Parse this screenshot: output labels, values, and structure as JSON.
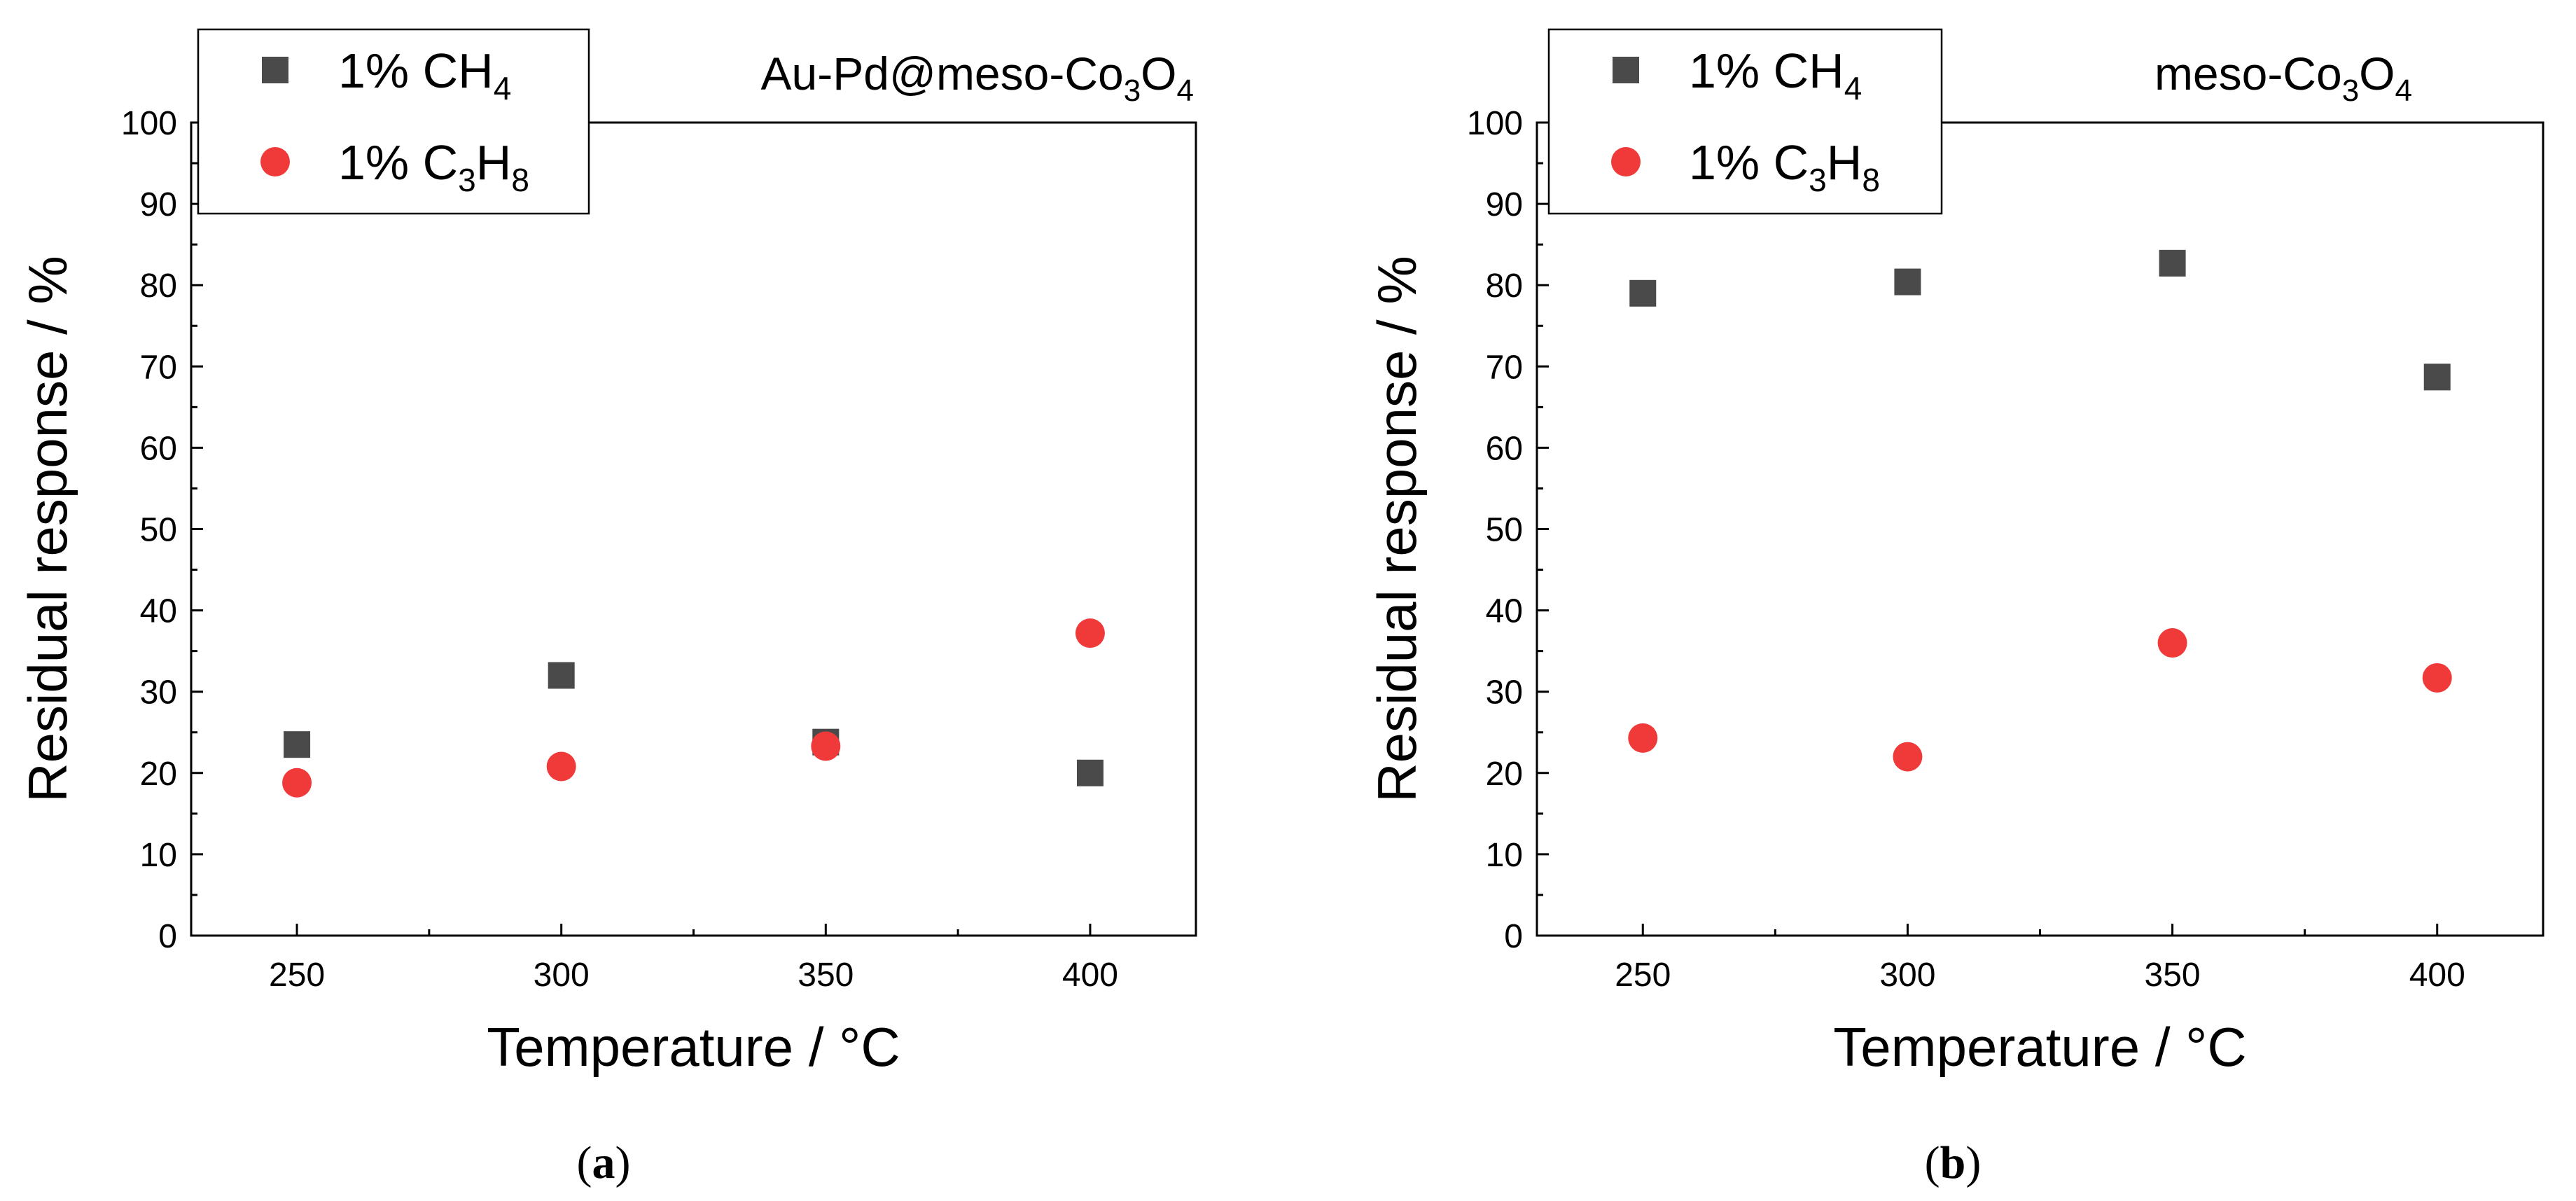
{
  "chart_data": [
    {
      "type": "scatter",
      "panel_label": "a",
      "title": "Au-Pd@meso-Co3O4",
      "xlabel": "Temperature / °C",
      "ylabel": "Residual response / %",
      "xlim": [
        230,
        420
      ],
      "ylim": [
        0,
        100
      ],
      "x_ticks": [
        250,
        300,
        350,
        400
      ],
      "y_ticks": [
        0,
        10,
        20,
        30,
        40,
        50,
        60,
        70,
        80,
        90,
        100
      ],
      "legend_position": "top-left",
      "series": [
        {
          "name": "1% CH4",
          "marker": "square",
          "color": "#4a4a4a",
          "x": [
            250,
            300,
            350,
            400
          ],
          "y": [
            23.5,
            32,
            23.8,
            20
          ]
        },
        {
          "name": "1% C3H8",
          "marker": "circle",
          "color": "#f03a3a",
          "x": [
            250,
            300,
            350,
            400
          ],
          "y": [
            18.8,
            20.8,
            23.3,
            37.2
          ]
        }
      ]
    },
    {
      "type": "scatter",
      "panel_label": "b",
      "title": "meso-Co3O4",
      "xlabel": "Temperature / °C",
      "ylabel": "Residual response / %",
      "xlim": [
        230,
        420
      ],
      "ylim": [
        0,
        100
      ],
      "x_ticks": [
        250,
        300,
        350,
        400
      ],
      "y_ticks": [
        0,
        10,
        20,
        30,
        40,
        50,
        60,
        70,
        80,
        90,
        100
      ],
      "legend_position": "top-left",
      "series": [
        {
          "name": "1% CH4",
          "marker": "square",
          "color": "#4a4a4a",
          "x": [
            250,
            300,
            350,
            400
          ],
          "y": [
            79,
            80.4,
            82.7,
            68.7
          ]
        },
        {
          "name": "1% C3H8",
          "marker": "circle",
          "color": "#f03a3a",
          "x": [
            250,
            300,
            350,
            400
          ],
          "y": [
            24.3,
            22,
            36,
            31.7
          ]
        }
      ]
    }
  ]
}
